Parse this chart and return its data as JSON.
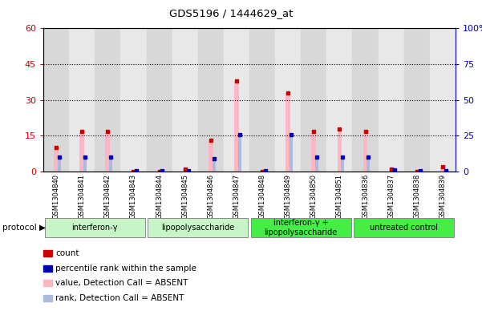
{
  "title": "GDS5196 / 1444629_at",
  "samples": [
    "GSM1304840",
    "GSM1304841",
    "GSM1304842",
    "GSM1304843",
    "GSM1304844",
    "GSM1304845",
    "GSM1304846",
    "GSM1304847",
    "GSM1304848",
    "GSM1304849",
    "GSM1304850",
    "GSM1304851",
    "GSM1304836",
    "GSM1304837",
    "GSM1304838",
    "GSM1304839"
  ],
  "pink_values": [
    10,
    17,
    17,
    0,
    0,
    1,
    13,
    38,
    0,
    33,
    17,
    18,
    17,
    1,
    0,
    2
  ],
  "lightblue_values": [
    10,
    10,
    10,
    0.5,
    0.5,
    0.5,
    9,
    26,
    0.5,
    26,
    10,
    10,
    10,
    1,
    0.5,
    0.5
  ],
  "red_values": [
    10,
    17,
    17,
    0,
    0,
    1,
    13,
    38,
    0,
    33,
    17,
    18,
    17,
    1,
    0,
    2
  ],
  "blue_values": [
    10,
    10,
    10,
    0.5,
    0.5,
    0.5,
    9,
    26,
    0.5,
    26,
    10,
    10,
    10,
    1,
    0.5,
    0.5
  ],
  "group_info": [
    {
      "label": "interferon-γ",
      "start": 0,
      "end": 3,
      "color": "#aaffaa"
    },
    {
      "label": "lipopolysaccharide",
      "start": 4,
      "end": 7,
      "color": "#aaffaa"
    },
    {
      "label": "interferon-γ +\nlipopolysaccharide",
      "start": 8,
      "end": 11,
      "color": "#44dd44"
    },
    {
      "label": "untreated control",
      "start": 12,
      "end": 15,
      "color": "#44dd44"
    }
  ],
  "ylim_left": [
    0,
    60
  ],
  "ylim_right": [
    0,
    100
  ],
  "yticks_left": [
    0,
    15,
    30,
    45,
    60
  ],
  "yticks_right": [
    0,
    25,
    50,
    75,
    100
  ],
  "left_axis_color": "#cc0000",
  "right_axis_color": "#0000cc",
  "pink_color": "#FFB6C1",
  "lightblue_color": "#aabbdd",
  "red_color": "#cc0000",
  "blue_color": "#0000bb",
  "bg_color_odd": "#d8d8d8",
  "bg_color_even": "#e8e8e8",
  "legend_items": [
    {
      "label": "count",
      "color": "#cc0000"
    },
    {
      "label": "percentile rank within the sample",
      "color": "#0000bb"
    },
    {
      "label": "value, Detection Call = ABSENT",
      "color": "#FFB6C1"
    },
    {
      "label": "rank, Detection Call = ABSENT",
      "color": "#aabbdd"
    }
  ]
}
